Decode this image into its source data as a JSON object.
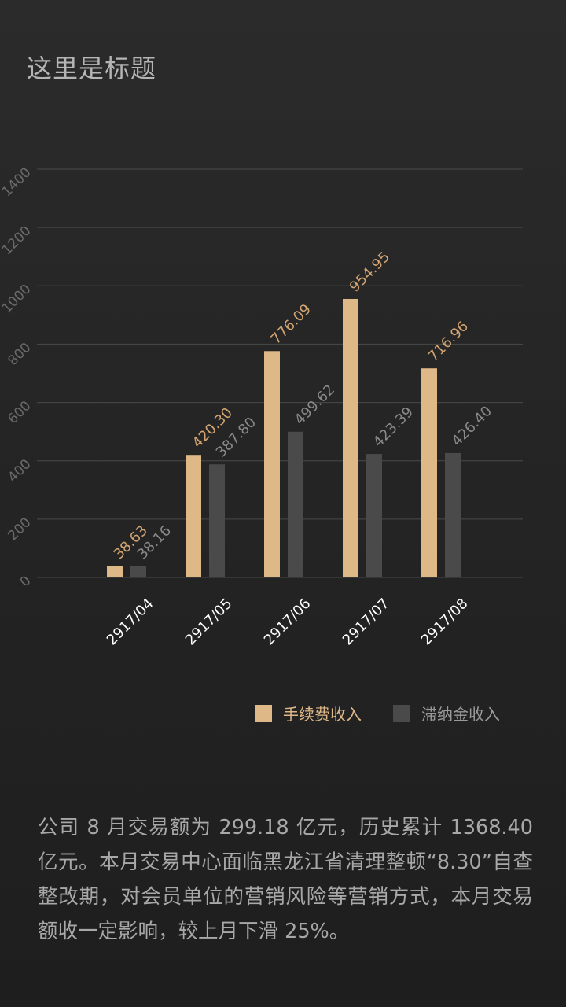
{
  "page": {
    "title": "这里是标题"
  },
  "colors": {
    "fee": "#deb887",
    "late": "#4a4a4a",
    "grid": "#4a4a4a",
    "axis_text": "#6a6a6a",
    "fee_label": "#d2a472",
    "late_label": "#8a8a8a",
    "cat_text": "#ffffff"
  },
  "chart_data": {
    "type": "bar",
    "categories": [
      "2917/04",
      "2917/05",
      "2917/06",
      "2917/07",
      "2917/08"
    ],
    "series": [
      {
        "name": "手续费收入",
        "values": [
          38.63,
          420.3,
          776.09,
          954.95,
          716.96
        ],
        "labels": [
          "38.63",
          "420.30",
          "776.09",
          "954.95",
          "716.96"
        ]
      },
      {
        "name": "滞纳金收入",
        "values": [
          38.16,
          387.8,
          499.62,
          423.39,
          426.4
        ],
        "labels": [
          "38.16",
          "387.80",
          "499.62",
          "423.39",
          "426.40"
        ]
      }
    ],
    "stacked": false,
    "y_ticks": [
      "0",
      "200",
      "400",
      "600",
      "800",
      "1000",
      "1200",
      "1400"
    ],
    "ylim": [
      0,
      1400
    ],
    "grid": true,
    "legend": "bottom-right"
  },
  "description": "公司 8 月交易额为 299.18 亿元，历史累计 1368.40 亿元。本月交易中心面临黑龙江省清理整顿“8.30”自查整改期，对会员单位的营销风险等营销方式，本月交易额收一定影响，较上月下滑 25%。"
}
